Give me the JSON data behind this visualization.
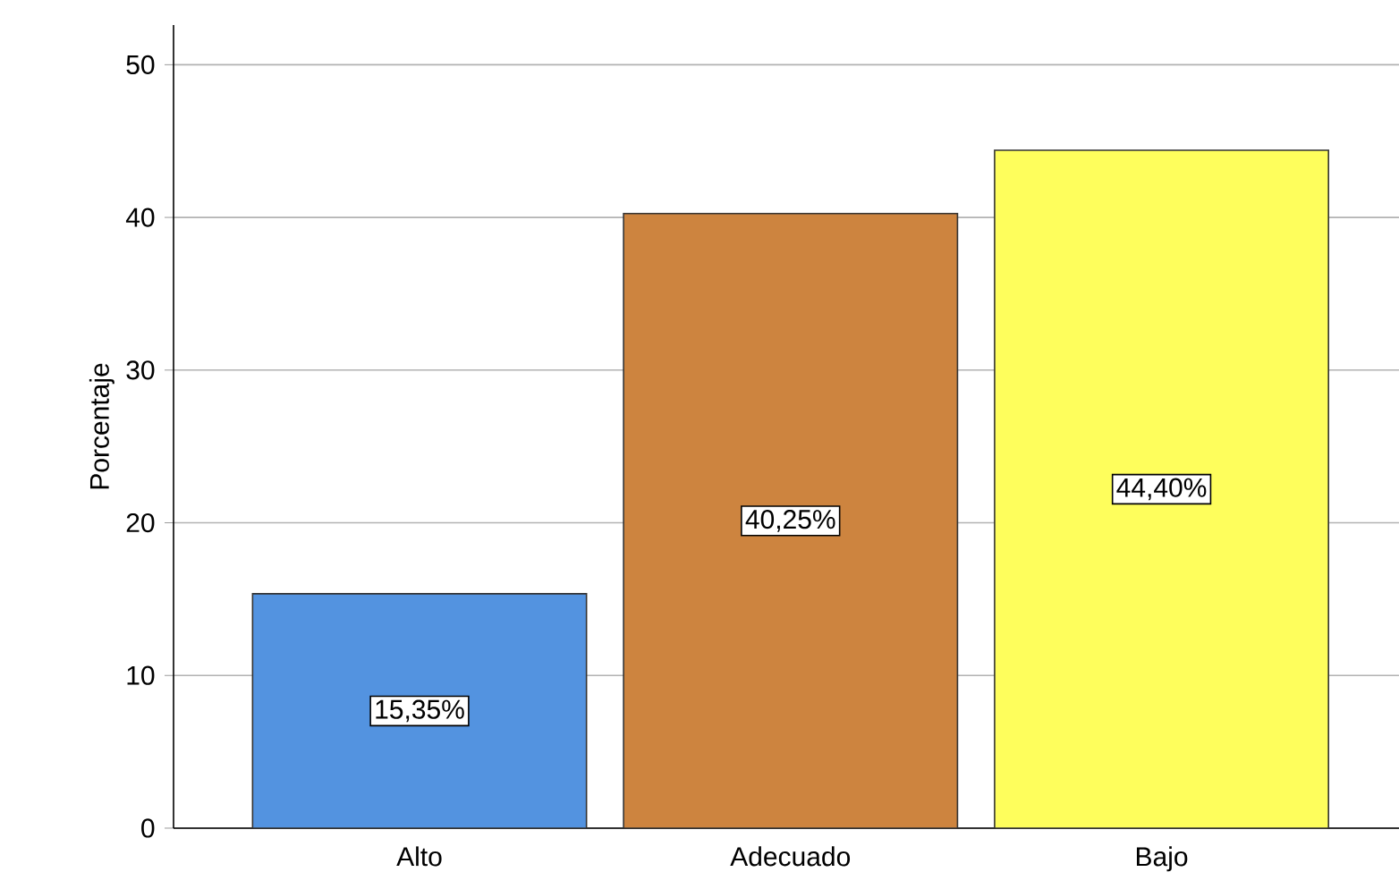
{
  "chart_data": {
    "type": "bar",
    "ylabel": "Porcentaje",
    "categories": [
      "Alto",
      "Adecuado",
      "Bajo"
    ],
    "values": [
      15.35,
      40.25,
      44.4
    ],
    "colors": [
      "#5393e0",
      "#cd843f",
      "#fefe5c"
    ],
    "value_labels": [
      "15,35%",
      "40,25%",
      "44,40%"
    ],
    "ylim": [
      0,
      52.6
    ],
    "yticks": [
      0,
      10,
      20,
      30,
      40,
      50
    ],
    "grid": "y"
  }
}
